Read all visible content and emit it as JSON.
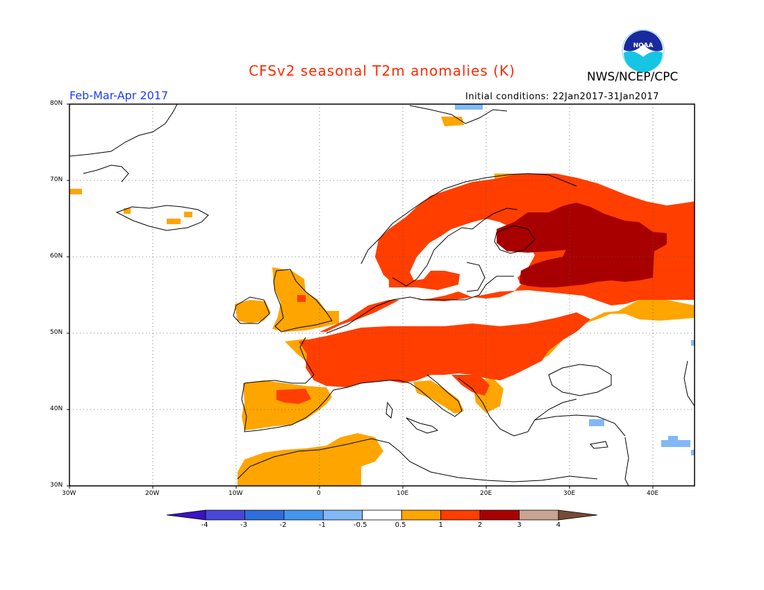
{
  "header": {
    "title": "CFSv2 seasonal T2m anomalies (K)",
    "org": "NWS/NCEP/CPC",
    "period": "Feb-Mar-Apr 2017",
    "initial_conditions": "Initial conditions: 22Jan2017-31Jan2017"
  },
  "logo": {
    "text": "NOAA",
    "icon": "noaa-logo"
  },
  "axes": {
    "lat_labels": [
      "80N",
      "70N",
      "60N",
      "50N",
      "40N",
      "30N"
    ],
    "lon_labels": [
      "30W",
      "20W",
      "10W",
      "0",
      "10E",
      "20E",
      "30E",
      "40E"
    ]
  },
  "colorbar": {
    "labels": [
      "-4",
      "-3",
      "-2",
      "-1",
      "-0.5",
      "0.5",
      "1",
      "2",
      "3",
      "4"
    ],
    "colors": [
      "#3b13c6",
      "#4a46d8",
      "#2f6fdc",
      "#4596ef",
      "#82b8f5",
      "#ffffff",
      "#ffa500",
      "#ff3e00",
      "#a80000",
      "#c9a393",
      "#774a36"
    ]
  },
  "legend_colors": {
    "0.5-1": "#ffa500",
    "1-2": "#ff3e00",
    "2-3": "#a80000",
    "-1--0.5": "#82b8f5"
  }
}
